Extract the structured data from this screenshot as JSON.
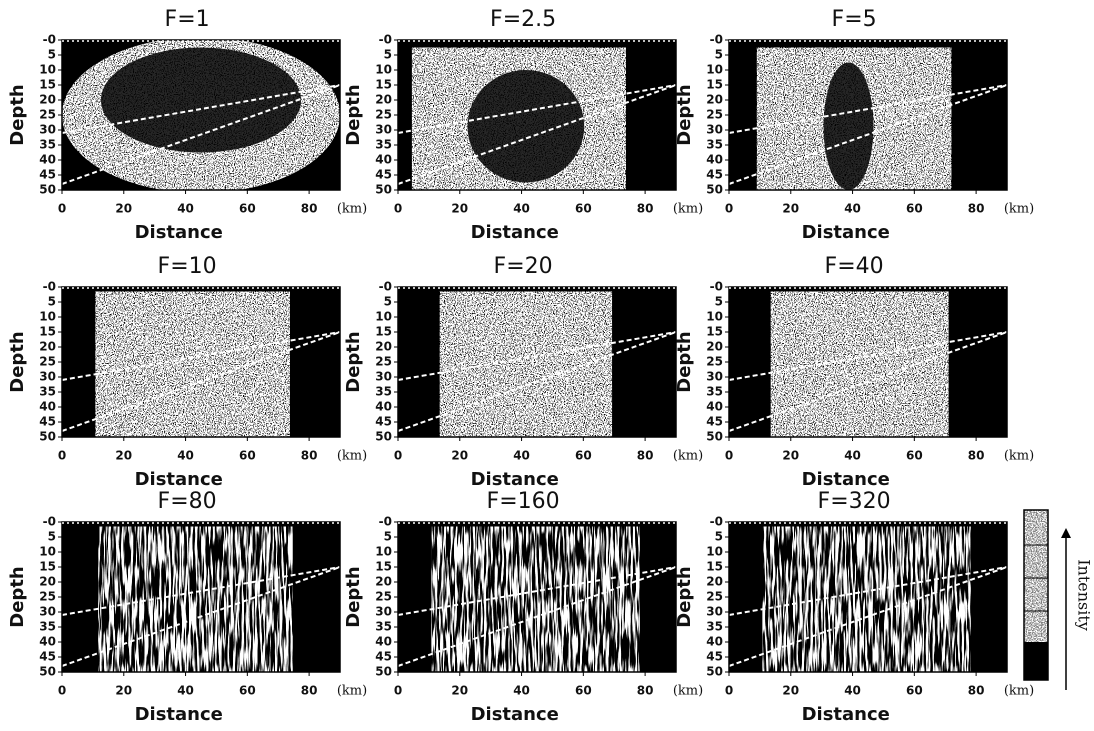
{
  "chart_data": [
    {
      "type": "image",
      "title": "F=1",
      "xlabel": "Distance",
      "ylabel": "Depth",
      "x_unit": "(km)",
      "xlim": [
        0,
        90
      ],
      "ylim": [
        0,
        50
      ],
      "y_inverted": true,
      "xticks": [
        0,
        20,
        40,
        60,
        80
      ],
      "yticks": [
        {
          "value": 0,
          "label": "-0"
        },
        5,
        10,
        15,
        20,
        25,
        30,
        35,
        40,
        45,
        50
      ]
    },
    {
      "type": "image",
      "title": "F=2.5",
      "xlabel": "Distance",
      "ylabel": "Depth",
      "x_unit": "(km)",
      "xlim": [
        0,
        90
      ],
      "ylim": [
        0,
        50
      ],
      "y_inverted": true,
      "xticks": [
        0,
        20,
        40,
        60,
        80
      ],
      "yticks": [
        {
          "value": 0,
          "label": "-0"
        },
        5,
        10,
        15,
        20,
        25,
        30,
        35,
        40,
        45,
        50
      ]
    },
    {
      "type": "image",
      "title": "F=5",
      "xlabel": "Distance",
      "ylabel": "Depth",
      "x_unit": "(km)",
      "xlim": [
        0,
        90
      ],
      "ylim": [
        0,
        50
      ],
      "y_inverted": true,
      "xticks": [
        0,
        20,
        40,
        60,
        80
      ],
      "yticks": [
        {
          "value": 0,
          "label": "-0"
        },
        5,
        10,
        15,
        20,
        25,
        30,
        35,
        40,
        45,
        50
      ]
    },
    {
      "type": "image",
      "title": "F=10",
      "xlabel": "Distance",
      "ylabel": "Depth",
      "x_unit": "(km)",
      "xlim": [
        0,
        90
      ],
      "ylim": [
        0,
        50
      ],
      "y_inverted": true,
      "xticks": [
        0,
        20,
        40,
        60,
        80
      ],
      "yticks": [
        {
          "value": 0,
          "label": "-0"
        },
        5,
        10,
        15,
        20,
        25,
        30,
        35,
        40,
        45,
        50
      ]
    },
    {
      "type": "image",
      "title": "F=20",
      "xlabel": "Distance",
      "ylabel": "Depth",
      "x_unit": "(km)",
      "xlim": [
        0,
        90
      ],
      "ylim": [
        0,
        50
      ],
      "y_inverted": true,
      "xticks": [
        0,
        20,
        40,
        60,
        80
      ],
      "yticks": [
        {
          "value": 0,
          "label": "-0"
        },
        5,
        10,
        15,
        20,
        25,
        30,
        35,
        40,
        45,
        50
      ]
    },
    {
      "type": "image",
      "title": "F=40",
      "xlabel": "Distance",
      "ylabel": "Depth",
      "x_unit": "(km)",
      "xlim": [
        0,
        90
      ],
      "ylim": [
        0,
        50
      ],
      "y_inverted": true,
      "xticks": [
        0,
        20,
        40,
        60,
        80
      ],
      "yticks": [
        {
          "value": 0,
          "label": "-0"
        },
        5,
        10,
        15,
        20,
        25,
        30,
        35,
        40,
        45,
        50
      ]
    },
    {
      "type": "image",
      "title": "F=80",
      "xlabel": "Distance",
      "ylabel": "Depth",
      "x_unit": "(km)",
      "xlim": [
        0,
        90
      ],
      "ylim": [
        0,
        50
      ],
      "y_inverted": true,
      "xticks": [
        0,
        20,
        40,
        60,
        80
      ],
      "yticks": [
        {
          "value": 0,
          "label": "-0"
        },
        5,
        10,
        15,
        20,
        25,
        30,
        35,
        40,
        45,
        50
      ]
    },
    {
      "type": "image",
      "title": "F=160",
      "xlabel": "Distance",
      "ylabel": "Depth",
      "x_unit": "(km)",
      "xlim": [
        0,
        90
      ],
      "ylim": [
        0,
        50
      ],
      "y_inverted": true,
      "xticks": [
        0,
        20,
        40,
        60,
        80
      ],
      "yticks": [
        {
          "value": 0,
          "label": "-0"
        },
        5,
        10,
        15,
        20,
        25,
        30,
        35,
        40,
        45,
        50
      ]
    },
    {
      "type": "image",
      "title": "F=320",
      "xlabel": "Distance",
      "ylabel": "Depth",
      "x_unit": "(km)",
      "xlim": [
        0,
        90
      ],
      "ylim": [
        0,
        50
      ],
      "y_inverted": true,
      "xticks": [
        0,
        20,
        40,
        60,
        80
      ],
      "yticks": [
        {
          "value": 0,
          "label": "-0"
        },
        5,
        10,
        15,
        20,
        25,
        30,
        35,
        40,
        45,
        50
      ]
    }
  ],
  "colorbar": {
    "label": "Intensity"
  }
}
